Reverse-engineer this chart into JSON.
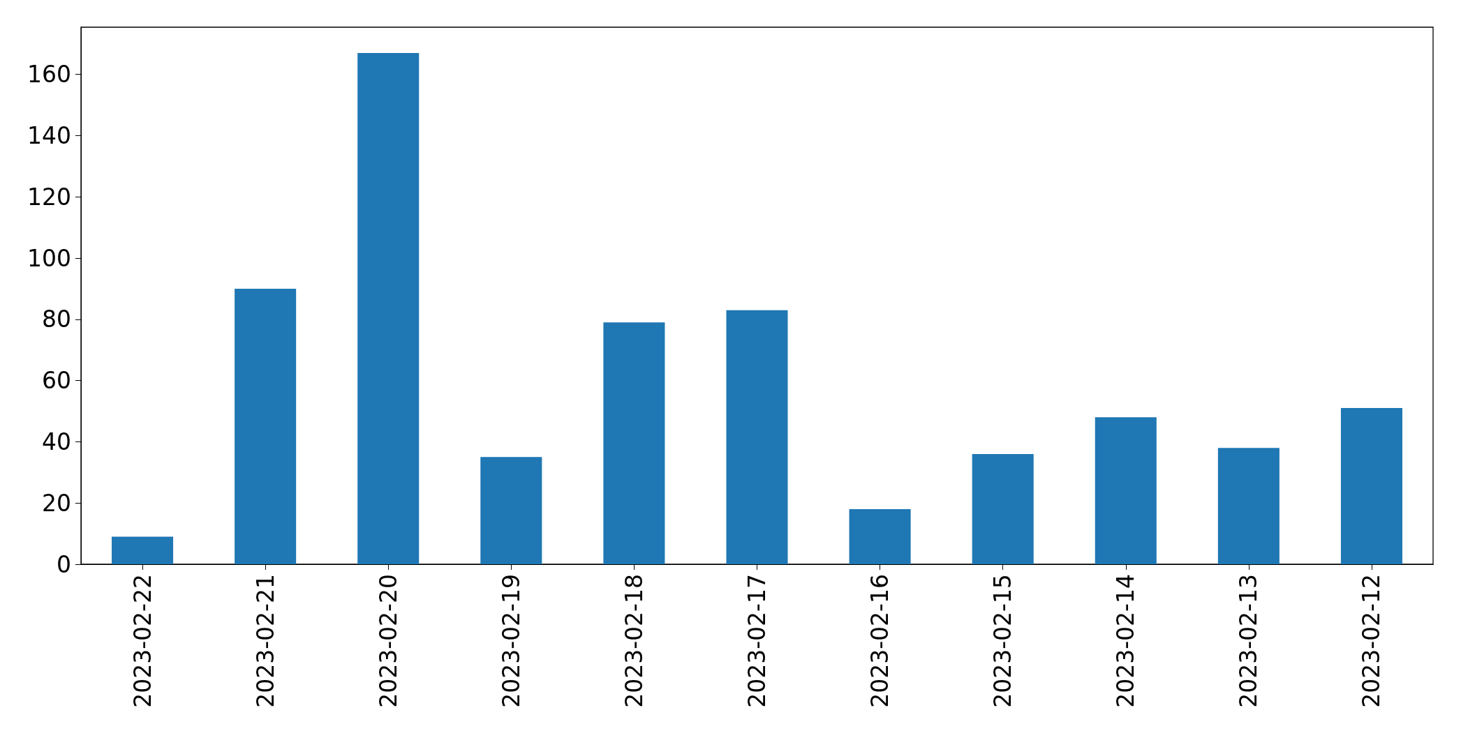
{
  "chart_data": {
    "type": "bar",
    "categories": [
      "2023-02-22",
      "2023-02-21",
      "2023-02-20",
      "2023-02-19",
      "2023-02-18",
      "2023-02-17",
      "2023-02-16",
      "2023-02-15",
      "2023-02-14",
      "2023-02-13",
      "2023-02-12"
    ],
    "values": [
      9,
      90,
      167,
      35,
      79,
      83,
      18,
      36,
      48,
      38,
      51
    ],
    "color": "#1f77b4",
    "ylim": [
      0,
      175.4
    ],
    "yticks": [
      0,
      20,
      40,
      60,
      80,
      100,
      120,
      140,
      160
    ],
    "grid": false
  }
}
